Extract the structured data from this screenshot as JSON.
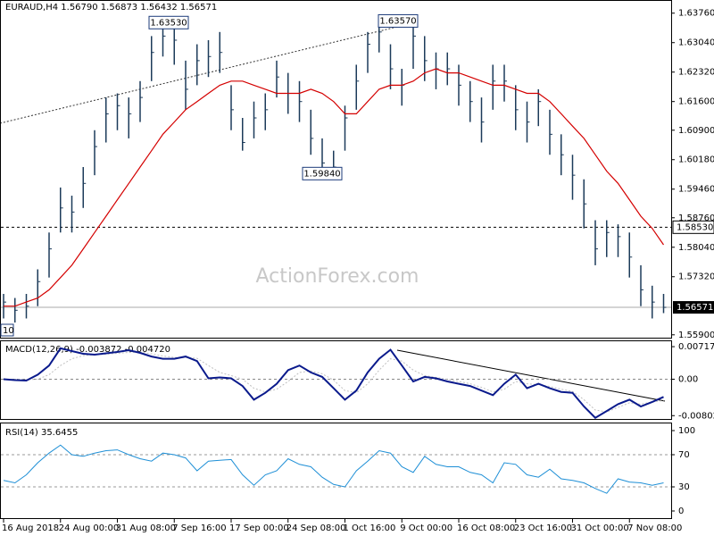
{
  "chart_data": [
    {
      "type": "ohlc",
      "title": "EURAUD,H4  1.56790 1.56873 1.56432 1.56571",
      "watermark": "ActionForex.com",
      "corner_label": "10",
      "bars": {
        "color": "#1c3b5a",
        "high": [
          1.569,
          1.568,
          1.569,
          1.575,
          1.584,
          1.595,
          1.593,
          1.6,
          1.609,
          1.617,
          1.618,
          1.617,
          1.621,
          1.632,
          1.6353,
          1.634,
          1.626,
          1.63,
          1.631,
          1.633,
          1.62,
          1.612,
          1.616,
          1.618,
          1.626,
          1.623,
          1.621,
          1.614,
          1.607,
          1.604,
          1.615,
          1.625,
          1.633,
          1.6357,
          1.63,
          1.624,
          1.635,
          1.632,
          1.628,
          1.628,
          1.625,
          1.621,
          1.617,
          1.625,
          1.625,
          1.62,
          1.616,
          1.619,
          1.614,
          1.608,
          1.603,
          1.597,
          1.587,
          1.587,
          1.586,
          1.584,
          1.576,
          1.571,
          1.569
        ],
        "low": [
          1.563,
          1.562,
          1.563,
          1.566,
          1.573,
          1.584,
          1.584,
          1.59,
          1.598,
          1.606,
          1.609,
          1.607,
          1.611,
          1.621,
          1.627,
          1.625,
          1.614,
          1.62,
          1.622,
          1.623,
          1.609,
          1.604,
          1.607,
          1.609,
          1.617,
          1.613,
          1.611,
          1.603,
          1.598,
          1.5984,
          1.604,
          1.614,
          1.623,
          1.628,
          1.619,
          1.615,
          1.624,
          1.621,
          1.619,
          1.62,
          1.615,
          1.611,
          1.606,
          1.614,
          1.616,
          1.609,
          1.606,
          1.61,
          1.603,
          1.598,
          1.592,
          1.585,
          1.576,
          1.578,
          1.578,
          1.573,
          1.566,
          1.563,
          1.5643
        ],
        "close": [
          1.567,
          1.565,
          1.566,
          1.572,
          1.58,
          1.59,
          1.589,
          1.596,
          1.605,
          1.613,
          1.615,
          1.613,
          1.617,
          1.628,
          1.632,
          1.631,
          1.619,
          1.626,
          1.627,
          1.628,
          1.614,
          1.606,
          1.612,
          1.614,
          1.622,
          1.618,
          1.616,
          1.607,
          1.601,
          1.6,
          1.612,
          1.621,
          1.63,
          1.633,
          1.624,
          1.62,
          1.632,
          1.626,
          1.624,
          1.624,
          1.62,
          1.616,
          1.611,
          1.621,
          1.621,
          1.614,
          1.611,
          1.616,
          1.608,
          1.603,
          1.598,
          1.591,
          1.58,
          1.584,
          1.583,
          1.578,
          1.57,
          1.567,
          1.56571
        ]
      },
      "ma": {
        "color": "#d40000",
        "values": [
          1.566,
          1.566,
          1.567,
          1.568,
          1.57,
          1.573,
          1.576,
          1.58,
          1.584,
          1.588,
          1.592,
          1.596,
          1.6,
          1.604,
          1.608,
          1.611,
          1.614,
          1.616,
          1.618,
          1.62,
          1.621,
          1.621,
          1.62,
          1.619,
          1.618,
          1.618,
          1.618,
          1.619,
          1.618,
          1.616,
          1.613,
          1.613,
          1.616,
          1.619,
          1.62,
          1.62,
          1.621,
          1.623,
          1.624,
          1.623,
          1.623,
          1.622,
          1.621,
          1.62,
          1.62,
          1.619,
          1.618,
          1.618,
          1.616,
          1.613,
          1.61,
          1.607,
          1.603,
          1.599,
          1.596,
          1.592,
          1.588,
          1.585,
          1.581
        ]
      },
      "ylim": [
        1.5583,
        1.6406
      ],
      "yticks": [
        {
          "value": 1.6376,
          "label": "1.63760"
        },
        {
          "value": 1.6304,
          "label": "1.63040"
        },
        {
          "value": 1.6232,
          "label": "1.62320"
        },
        {
          "value": 1.616,
          "label": "1.61600"
        },
        {
          "value": 1.609,
          "label": "1.60900"
        },
        {
          "value": 1.6018,
          "label": "1.60180"
        },
        {
          "value": 1.5946,
          "label": "1.59460"
        },
        {
          "value": 1.5876,
          "label": "1.58760"
        },
        {
          "value": 1.5804,
          "label": "1.58040"
        },
        {
          "value": 1.5732,
          "label": "1.57320"
        },
        {
          "value": 1.559,
          "label": "1.55900"
        }
      ],
      "level": {
        "value": 1.5853,
        "label": "1.58530"
      },
      "last": 1.56571,
      "annotations": [
        {
          "value": 1.6353,
          "label": "1.63530"
        },
        {
          "value": 1.6357,
          "label": "1.63570"
        },
        {
          "value": 1.5984,
          "label": "1.59840"
        }
      ]
    },
    {
      "type": "macd",
      "title": "MACD(12,26,9) -0.003872 -0.004720",
      "macd": {
        "color": "#0a1a8c",
        "values": [
          0.0,
          -0.0002,
          -0.0003,
          0.001,
          0.003,
          0.0068,
          0.0062,
          0.0056,
          0.0054,
          0.0057,
          0.006,
          0.0064,
          0.0058,
          0.005,
          0.0045,
          0.0045,
          0.005,
          0.004,
          0.0002,
          0.0004,
          0.0002,
          -0.0015,
          -0.0045,
          -0.003,
          -0.001,
          0.002,
          0.003,
          0.0015,
          0.0005,
          -0.002,
          -0.0045,
          -0.0025,
          0.0015,
          0.0045,
          0.0065,
          0.003,
          -0.0005,
          0.0005,
          0.0002,
          -0.0005,
          -0.001,
          -0.0015,
          -0.0025,
          -0.0035,
          -0.001,
          0.001,
          -0.002,
          -0.001,
          -0.002,
          -0.0028,
          -0.003,
          -0.006,
          -0.0085,
          -0.007,
          -0.0055,
          -0.0045,
          -0.006,
          -0.005,
          -0.0039
        ]
      },
      "signal": {
        "color": "#c0c0c0",
        "values": [
          0.0,
          0.0,
          -0.0001,
          0.0,
          0.001,
          0.003,
          0.0045,
          0.0052,
          0.0054,
          0.0055,
          0.0057,
          0.0059,
          0.006,
          0.0056,
          0.0051,
          0.0048,
          0.0048,
          0.0046,
          0.003,
          0.0015,
          0.0008,
          0.0,
          -0.002,
          -0.0028,
          -0.0022,
          -0.0005,
          0.0015,
          0.0018,
          0.0012,
          -0.0002,
          -0.0025,
          -0.003,
          -0.001,
          0.002,
          0.0045,
          0.004,
          0.002,
          0.0008,
          0.0004,
          0.0,
          -0.0005,
          -0.001,
          -0.0018,
          -0.0028,
          -0.0022,
          -0.0005,
          -0.001,
          -0.0012,
          -0.0016,
          -0.0022,
          -0.0027,
          -0.0045,
          -0.0068,
          -0.0072,
          -0.0062,
          -0.0052,
          -0.0055,
          -0.005,
          -0.0047
        ]
      },
      "ylim": [
        -0.00876,
        0.00836
      ],
      "yticks": [
        0.00717,
        {
          "value": 0,
          "label": "0.00"
        },
        -0.008027
      ]
    },
    {
      "type": "rsi",
      "title": "RSI(14) 35.6455",
      "color": "#1e8fd6",
      "values": [
        38,
        35,
        45,
        60,
        72,
        82,
        70,
        68,
        72,
        75,
        76,
        70,
        65,
        62,
        72,
        70,
        66,
        50,
        62,
        63,
        64,
        45,
        32,
        45,
        50,
        65,
        58,
        55,
        42,
        33,
        30,
        50,
        62,
        75,
        72,
        55,
        48,
        68,
        58,
        55,
        55,
        48,
        45,
        35,
        60,
        58,
        45,
        42,
        52,
        40,
        38,
        35,
        28,
        22,
        40,
        36,
        35,
        32,
        35
      ],
      "ylim": [
        -8.9,
        108.9
      ],
      "yticks": [
        100,
        70,
        30,
        0
      ],
      "categories": [
        "16 Aug 2018",
        null,
        null,
        null,
        null,
        "24 Aug 00:00",
        null,
        null,
        null,
        null,
        "31 Aug 08:00",
        null,
        null,
        null,
        null,
        "7 Sep 16:00",
        null,
        null,
        null,
        null,
        "17 Sep 00:00",
        null,
        null,
        null,
        null,
        "24 Sep 08:00",
        null,
        null,
        null,
        null,
        "1 Oct 16:00",
        null,
        null,
        null,
        null,
        "9 Oct 00:00",
        null,
        null,
        null,
        null,
        "16 Oct 08:00",
        null,
        null,
        null,
        null,
        "23 Oct 16:00",
        null,
        null,
        null,
        null,
        "31 Oct 00:00",
        null,
        null,
        null,
        null,
        "7 Nov 08:00",
        null,
        null,
        null
      ]
    }
  ]
}
